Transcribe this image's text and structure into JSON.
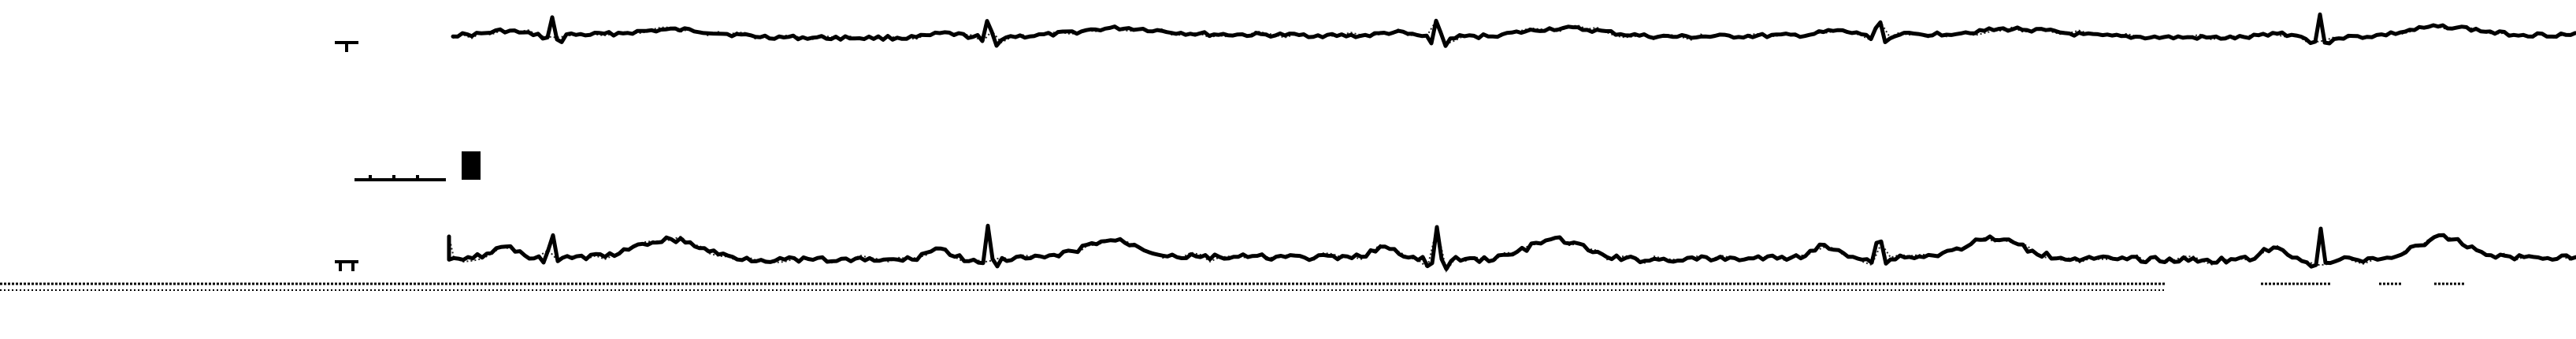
{
  "leads": [
    {
      "id": "upper"
    },
    {
      "id": "lower"
    }
  ],
  "colors": {
    "background": "#ffffff",
    "trace": "#000000"
  }
}
